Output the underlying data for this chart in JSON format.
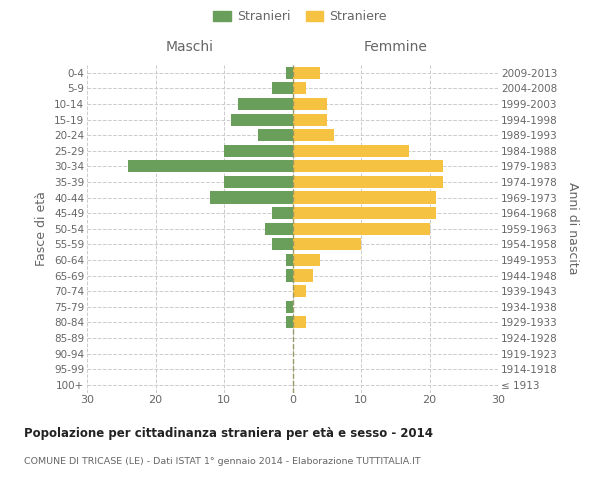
{
  "age_groups": [
    "100+",
    "95-99",
    "90-94",
    "85-89",
    "80-84",
    "75-79",
    "70-74",
    "65-69",
    "60-64",
    "55-59",
    "50-54",
    "45-49",
    "40-44",
    "35-39",
    "30-34",
    "25-29",
    "20-24",
    "15-19",
    "10-14",
    "5-9",
    "0-4"
  ],
  "birth_years": [
    "≤ 1913",
    "1914-1918",
    "1919-1923",
    "1924-1928",
    "1929-1933",
    "1934-1938",
    "1939-1943",
    "1944-1948",
    "1949-1953",
    "1954-1958",
    "1959-1963",
    "1964-1968",
    "1969-1973",
    "1974-1978",
    "1979-1983",
    "1984-1988",
    "1989-1993",
    "1994-1998",
    "1999-2003",
    "2004-2008",
    "2009-2013"
  ],
  "stranieri": [
    0,
    0,
    0,
    0,
    1,
    1,
    0,
    1,
    1,
    3,
    4,
    3,
    12,
    10,
    24,
    10,
    5,
    9,
    8,
    3,
    1
  ],
  "straniere": [
    0,
    0,
    0,
    0,
    2,
    0,
    2,
    3,
    4,
    10,
    20,
    21,
    21,
    22,
    22,
    17,
    6,
    5,
    5,
    2,
    4
  ],
  "color_stranieri": "#6a9e5b",
  "color_straniere": "#f5c242",
  "title": "Popolazione per cittadinanza straniera per età e sesso - 2014",
  "subtitle": "COMUNE DI TRICASE (LE) - Dati ISTAT 1° gennaio 2014 - Elaborazione TUTTITALIA.IT",
  "ylabel_left": "Fasce di età",
  "ylabel_right": "Anni di nascita",
  "xlabel_left": "Maschi",
  "xlabel_right": "Femmine",
  "xlim": 30,
  "legend_stranieri": "Stranieri",
  "legend_straniere": "Straniere",
  "background_color": "#ffffff",
  "grid_color": "#cccccc",
  "text_color": "#666666"
}
